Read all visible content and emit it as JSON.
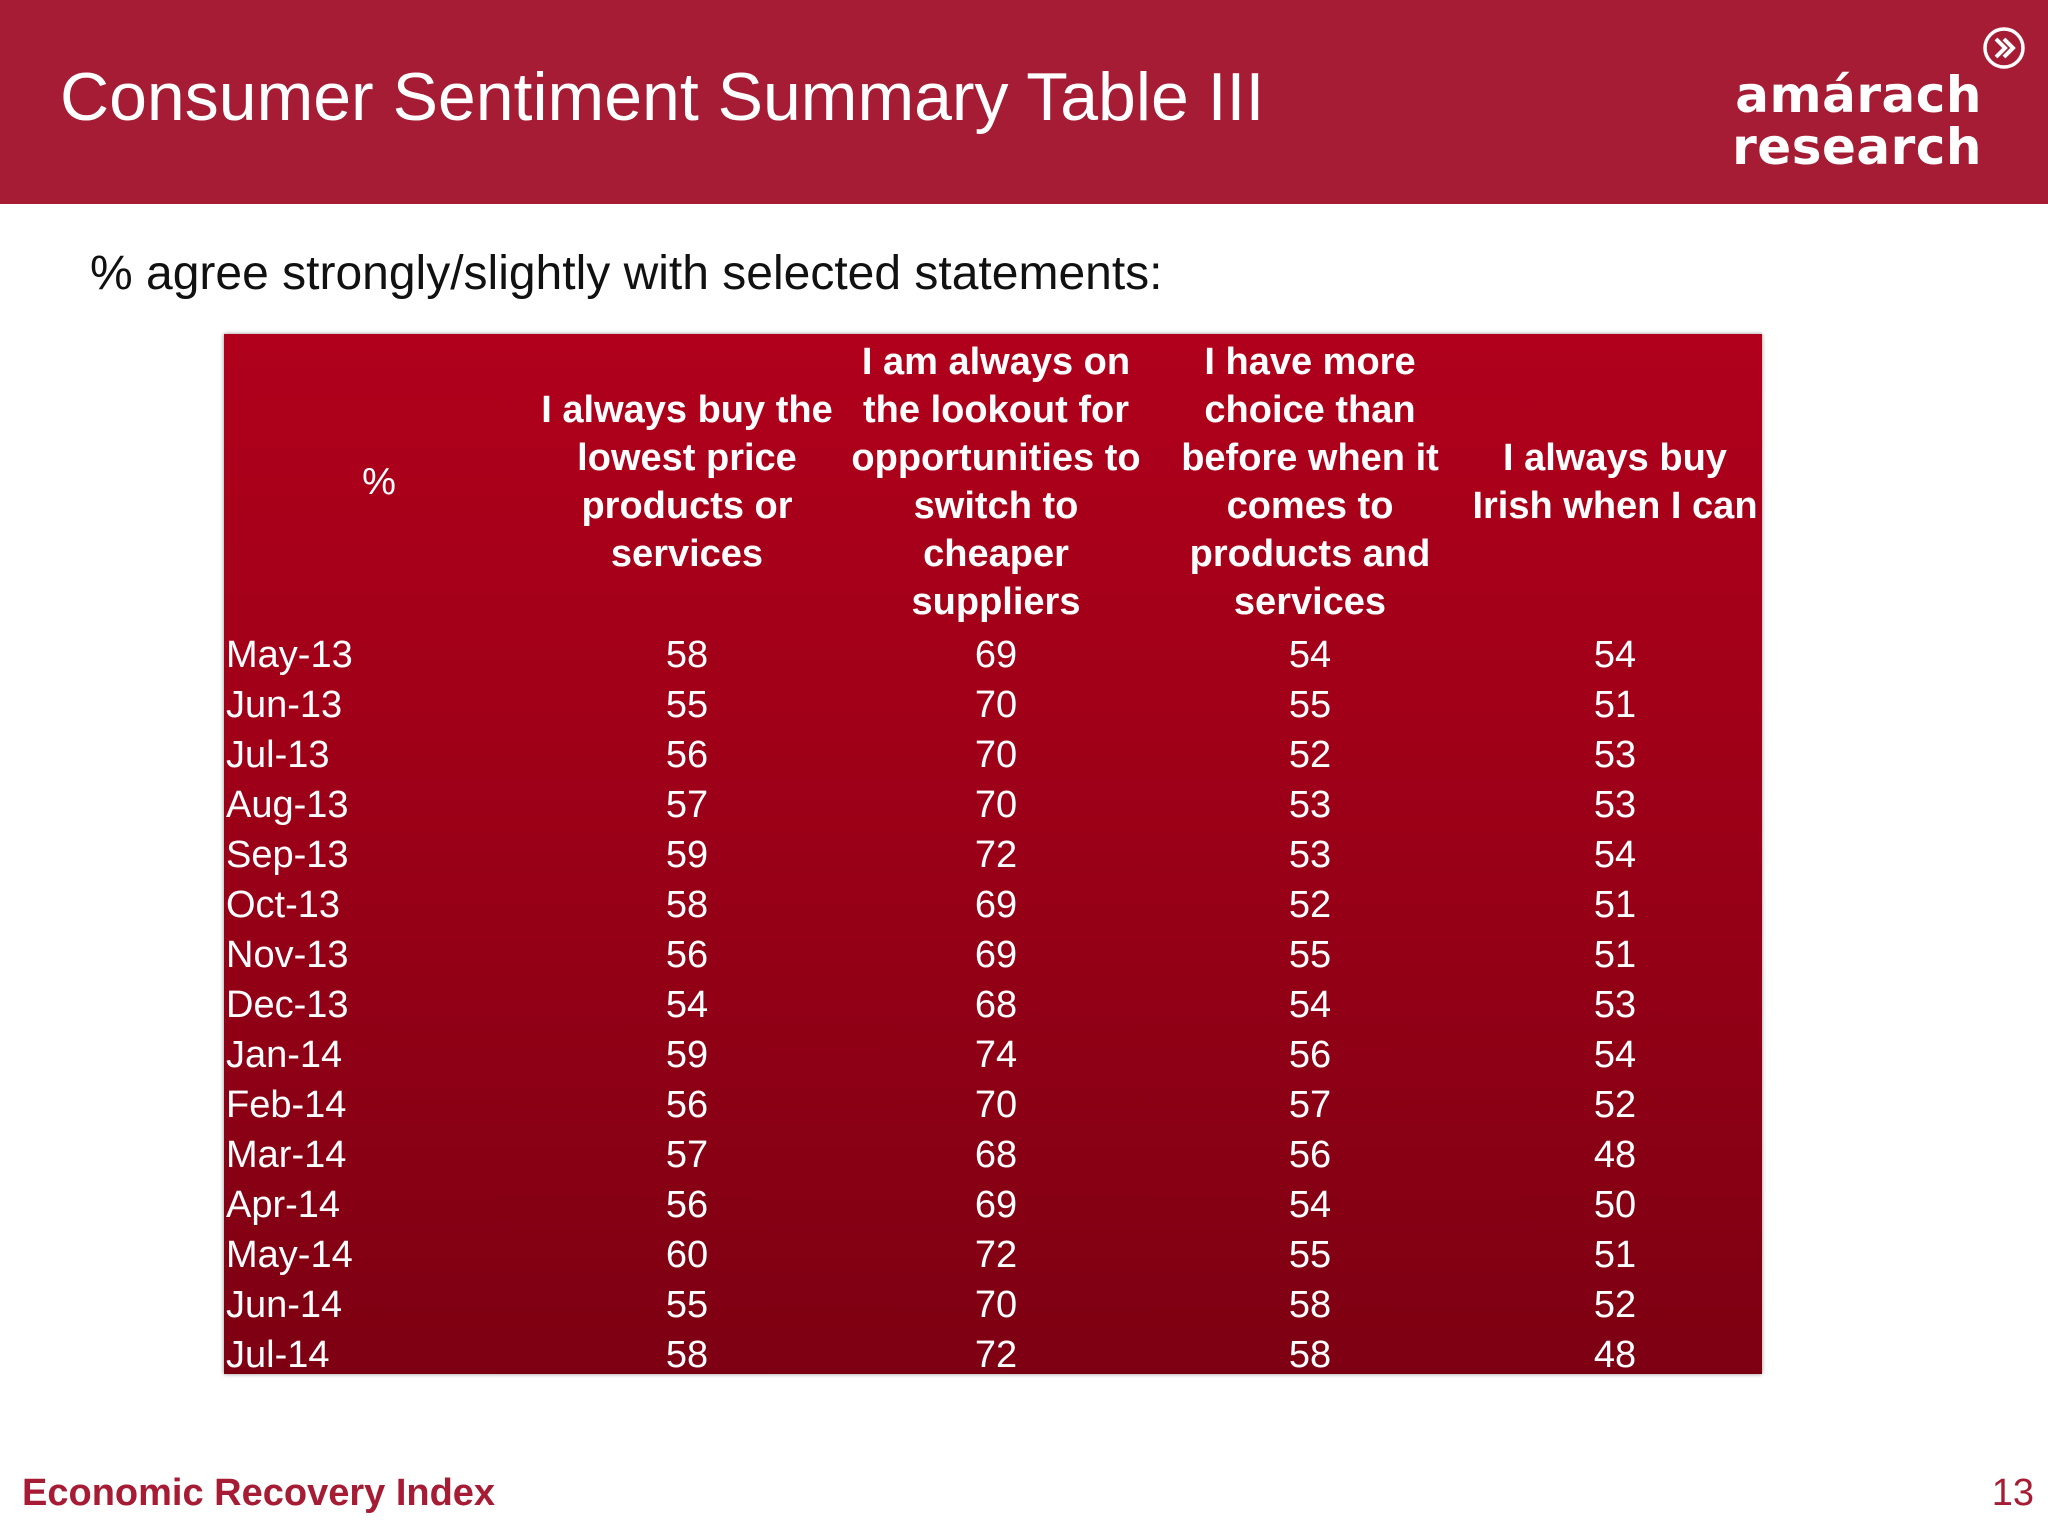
{
  "slide": {
    "title": "Consumer Sentiment Summary Table III",
    "subtitle": "% agree strongly/slightly with selected statements:",
    "footer_label": "Economic Recovery Index",
    "page_number": "13"
  },
  "logo": {
    "line1": "amárach",
    "line2": "research",
    "icon": "double-chevron-right-icon"
  },
  "colors": {
    "brand": "#a51c34",
    "table_top": "#b0001c",
    "table_bottom": "#7d0012",
    "text_on_brand": "#ffffff"
  },
  "chart_data": {
    "type": "table",
    "columns": [
      "%",
      "I always buy the lowest price products or services",
      "I am always on the lookout for opportunities to switch to cheaper suppliers",
      "I have more choice than before when it comes to products and services",
      "I always buy Irish when I can"
    ],
    "rows": [
      {
        "month": "May-13",
        "values": [
          58,
          69,
          54,
          54
        ]
      },
      {
        "month": "Jun-13",
        "values": [
          55,
          70,
          55,
          51
        ]
      },
      {
        "month": "Jul-13",
        "values": [
          56,
          70,
          52,
          53
        ]
      },
      {
        "month": "Aug-13",
        "values": [
          57,
          70,
          53,
          53
        ]
      },
      {
        "month": "Sep-13",
        "values": [
          59,
          72,
          53,
          54
        ]
      },
      {
        "month": "Oct-13",
        "values": [
          58,
          69,
          52,
          51
        ]
      },
      {
        "month": "Nov-13",
        "values": [
          56,
          69,
          55,
          51
        ]
      },
      {
        "month": "Dec-13",
        "values": [
          54,
          68,
          54,
          53
        ]
      },
      {
        "month": "Jan-14",
        "values": [
          59,
          74,
          56,
          54
        ]
      },
      {
        "month": "Feb-14",
        "values": [
          56,
          70,
          57,
          52
        ]
      },
      {
        "month": "Mar-14",
        "values": [
          57,
          68,
          56,
          48
        ]
      },
      {
        "month": "Apr-14",
        "values": [
          56,
          69,
          54,
          50
        ]
      },
      {
        "month": "May-14",
        "values": [
          60,
          72,
          55,
          51
        ]
      },
      {
        "month": "Jun-14",
        "values": [
          55,
          70,
          58,
          52
        ]
      },
      {
        "month": "Jul-14",
        "values": [
          58,
          72,
          58,
          48
        ]
      }
    ]
  }
}
